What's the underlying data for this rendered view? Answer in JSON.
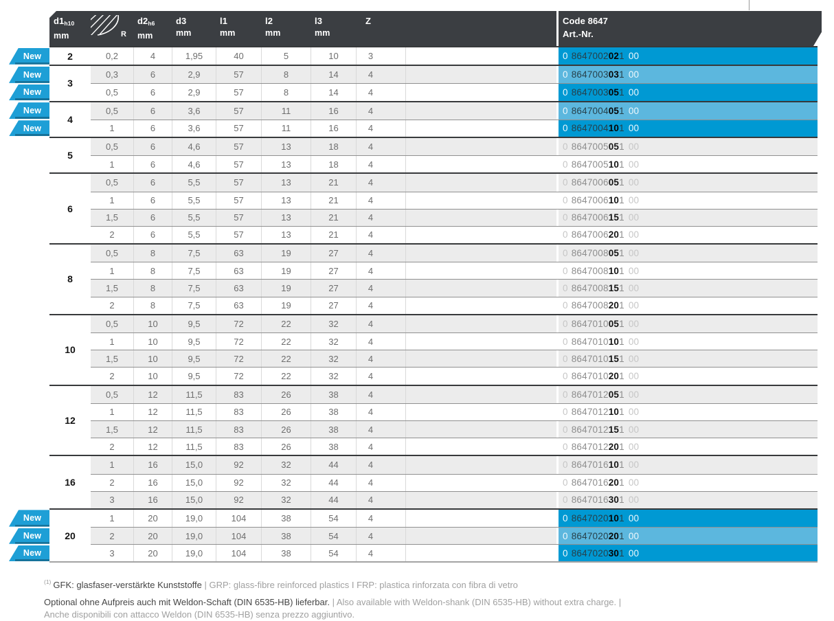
{
  "table": {
    "header": {
      "d1": {
        "name": "d1",
        "sub": "h10",
        "unit": "mm"
      },
      "r": {
        "label": "R"
      },
      "d2": {
        "name": "d2",
        "sub": "h6",
        "unit": "mm"
      },
      "d3": {
        "name": "d3",
        "unit": "mm"
      },
      "l1": {
        "name": "l1",
        "unit": "mm"
      },
      "l2": {
        "name": "l2",
        "unit": "mm"
      },
      "l3": {
        "name": "l3",
        "unit": "mm"
      },
      "z": {
        "name": "Z"
      },
      "code": {
        "line1": "Code 8647",
        "line2": "Art.-Nr."
      }
    },
    "new_badge_label": "New",
    "colors": {
      "highlight_dark": "#0099d3",
      "highlight_light": "#5cb7de",
      "badge_blue": "#1e9fd6",
      "header_charcoal": "#3b3e42",
      "stripe_gray": "#ececec"
    },
    "groups": [
      {
        "d1": "2",
        "rows": [
          {
            "r": "0,2",
            "d2": "4",
            "d3": "1,95",
            "l1": "40",
            "l2": "5",
            "l3": "10",
            "z": "3",
            "art": [
              "0",
              "8647002",
              "02",
              "1",
              "00"
            ],
            "new": true,
            "hl": true
          }
        ]
      },
      {
        "d1": "3",
        "rows": [
          {
            "r": "0,3",
            "d2": "6",
            "d3": "2,9",
            "l1": "57",
            "l2": "8",
            "l3": "14",
            "z": "4",
            "art": [
              "0",
              "8647003",
              "03",
              "1",
              "00"
            ],
            "new": true,
            "hl": true
          },
          {
            "r": "0,5",
            "d2": "6",
            "d3": "2,9",
            "l1": "57",
            "l2": "8",
            "l3": "14",
            "z": "4",
            "art": [
              "0",
              "8647003",
              "05",
              "1",
              "00"
            ],
            "new": true,
            "hl": true
          }
        ]
      },
      {
        "d1": "4",
        "rows": [
          {
            "r": "0,5",
            "d2": "6",
            "d3": "3,6",
            "l1": "57",
            "l2": "11",
            "l3": "16",
            "z": "4",
            "art": [
              "0",
              "8647004",
              "05",
              "1",
              "00"
            ],
            "new": true,
            "hl": true
          },
          {
            "r": "1",
            "d2": "6",
            "d3": "3,6",
            "l1": "57",
            "l2": "11",
            "l3": "16",
            "z": "4",
            "art": [
              "0",
              "8647004",
              "10",
              "1",
              "00"
            ],
            "new": true,
            "hl": true
          }
        ]
      },
      {
        "d1": "5",
        "rows": [
          {
            "r": "0,5",
            "d2": "6",
            "d3": "4,6",
            "l1": "57",
            "l2": "13",
            "l3": "18",
            "z": "4",
            "art": [
              "0",
              "8647005",
              "05",
              "1",
              "00"
            ]
          },
          {
            "r": "1",
            "d2": "6",
            "d3": "4,6",
            "l1": "57",
            "l2": "13",
            "l3": "18",
            "z": "4",
            "art": [
              "0",
              "8647005",
              "10",
              "1",
              "00"
            ]
          }
        ]
      },
      {
        "d1": "6",
        "rows": [
          {
            "r": "0,5",
            "d2": "6",
            "d3": "5,5",
            "l1": "57",
            "l2": "13",
            "l3": "21",
            "z": "4",
            "art": [
              "0",
              "8647006",
              "05",
              "1",
              "00"
            ]
          },
          {
            "r": "1",
            "d2": "6",
            "d3": "5,5",
            "l1": "57",
            "l2": "13",
            "l3": "21",
            "z": "4",
            "art": [
              "0",
              "8647006",
              "10",
              "1",
              "00"
            ]
          },
          {
            "r": "1,5",
            "d2": "6",
            "d3": "5,5",
            "l1": "57",
            "l2": "13",
            "l3": "21",
            "z": "4",
            "art": [
              "0",
              "8647006",
              "15",
              "1",
              "00"
            ]
          },
          {
            "r": "2",
            "d2": "6",
            "d3": "5,5",
            "l1": "57",
            "l2": "13",
            "l3": "21",
            "z": "4",
            "art": [
              "0",
              "8647006",
              "20",
              "1",
              "00"
            ]
          }
        ]
      },
      {
        "d1": "8",
        "rows": [
          {
            "r": "0,5",
            "d2": "8",
            "d3": "7,5",
            "l1": "63",
            "l2": "19",
            "l3": "27",
            "z": "4",
            "art": [
              "0",
              "8647008",
              "05",
              "1",
              "00"
            ]
          },
          {
            "r": "1",
            "d2": "8",
            "d3": "7,5",
            "l1": "63",
            "l2": "19",
            "l3": "27",
            "z": "4",
            "art": [
              "0",
              "8647008",
              "10",
              "1",
              "00"
            ]
          },
          {
            "r": "1,5",
            "d2": "8",
            "d3": "7,5",
            "l1": "63",
            "l2": "19",
            "l3": "27",
            "z": "4",
            "art": [
              "0",
              "8647008",
              "15",
              "1",
              "00"
            ]
          },
          {
            "r": "2",
            "d2": "8",
            "d3": "7,5",
            "l1": "63",
            "l2": "19",
            "l3": "27",
            "z": "4",
            "art": [
              "0",
              "8647008",
              "20",
              "1",
              "00"
            ]
          }
        ]
      },
      {
        "d1": "10",
        "rows": [
          {
            "r": "0,5",
            "d2": "10",
            "d3": "9,5",
            "l1": "72",
            "l2": "22",
            "l3": "32",
            "z": "4",
            "art": [
              "0",
              "8647010",
              "05",
              "1",
              "00"
            ]
          },
          {
            "r": "1",
            "d2": "10",
            "d3": "9,5",
            "l1": "72",
            "l2": "22",
            "l3": "32",
            "z": "4",
            "art": [
              "0",
              "8647010",
              "10",
              "1",
              "00"
            ]
          },
          {
            "r": "1,5",
            "d2": "10",
            "d3": "9,5",
            "l1": "72",
            "l2": "22",
            "l3": "32",
            "z": "4",
            "art": [
              "0",
              "8647010",
              "15",
              "1",
              "00"
            ]
          },
          {
            "r": "2",
            "d2": "10",
            "d3": "9,5",
            "l1": "72",
            "l2": "22",
            "l3": "32",
            "z": "4",
            "art": [
              "0",
              "8647010",
              "20",
              "1",
              "00"
            ]
          }
        ]
      },
      {
        "d1": "12",
        "rows": [
          {
            "r": "0,5",
            "d2": "12",
            "d3": "11,5",
            "l1": "83",
            "l2": "26",
            "l3": "38",
            "z": "4",
            "art": [
              "0",
              "8647012",
              "05",
              "1",
              "00"
            ]
          },
          {
            "r": "1",
            "d2": "12",
            "d3": "11,5",
            "l1": "83",
            "l2": "26",
            "l3": "38",
            "z": "4",
            "art": [
              "0",
              "8647012",
              "10",
              "1",
              "00"
            ]
          },
          {
            "r": "1,5",
            "d2": "12",
            "d3": "11,5",
            "l1": "83",
            "l2": "26",
            "l3": "38",
            "z": "4",
            "art": [
              "0",
              "8647012",
              "15",
              "1",
              "00"
            ]
          },
          {
            "r": "2",
            "d2": "12",
            "d3": "11,5",
            "l1": "83",
            "l2": "26",
            "l3": "38",
            "z": "4",
            "art": [
              "0",
              "8647012",
              "20",
              "1",
              "00"
            ]
          }
        ]
      },
      {
        "d1": "16",
        "rows": [
          {
            "r": "1",
            "d2": "16",
            "d3": "15,0",
            "l1": "92",
            "l2": "32",
            "l3": "44",
            "z": "4",
            "art": [
              "0",
              "8647016",
              "10",
              "1",
              "00"
            ]
          },
          {
            "r": "2",
            "d2": "16",
            "d3": "15,0",
            "l1": "92",
            "l2": "32",
            "l3": "44",
            "z": "4",
            "art": [
              "0",
              "8647016",
              "20",
              "1",
              "00"
            ]
          },
          {
            "r": "3",
            "d2": "16",
            "d3": "15,0",
            "l1": "92",
            "l2": "32",
            "l3": "44",
            "z": "4",
            "art": [
              "0",
              "8647016",
              "30",
              "1",
              "00"
            ]
          }
        ]
      },
      {
        "d1": "20",
        "rows": [
          {
            "r": "1",
            "d2": "20",
            "d3": "19,0",
            "l1": "104",
            "l2": "38",
            "l3": "54",
            "z": "4",
            "art": [
              "0",
              "8647020",
              "10",
              "1",
              "00"
            ],
            "new": true,
            "hl": true
          },
          {
            "r": "2",
            "d2": "20",
            "d3": "19,0",
            "l1": "104",
            "l2": "38",
            "l3": "54",
            "z": "4",
            "art": [
              "0",
              "8647020",
              "20",
              "1",
              "00"
            ],
            "new": true,
            "hl": true
          },
          {
            "r": "3",
            "d2": "20",
            "d3": "19,0",
            "l1": "104",
            "l2": "38",
            "l3": "54",
            "z": "4",
            "art": [
              "0",
              "8647020",
              "30",
              "1",
              "00"
            ],
            "new": true,
            "hl": true
          }
        ]
      }
    ]
  },
  "footnotes": {
    "fn1": {
      "sup": "(1)",
      "segments": [
        {
          "text": "GFK: glasfaser-verstärkte Kunststoffe ",
          "tone": "dark"
        },
        {
          "text": "| GRP: glass-fibre reinforced plastics I FRP: plastica rinforzata con fibra di vetro",
          "tone": "light"
        }
      ]
    },
    "fn2": {
      "segments": [
        {
          "text": "Optional ohne Aufpreis auch mit Weldon-Schaft (DIN 6535-HB) lieferbar.",
          "tone": "dark"
        },
        {
          "text": " | Also available with Weldon-shank (DIN 6535-HB) without extra charge. |",
          "tone": "light",
          "break_after": true
        },
        {
          "text": "Anche disponibili con attacco Weldon (DIN 6535-HB) senza prezzo aggiuntivo.",
          "tone": "light"
        }
      ]
    }
  }
}
